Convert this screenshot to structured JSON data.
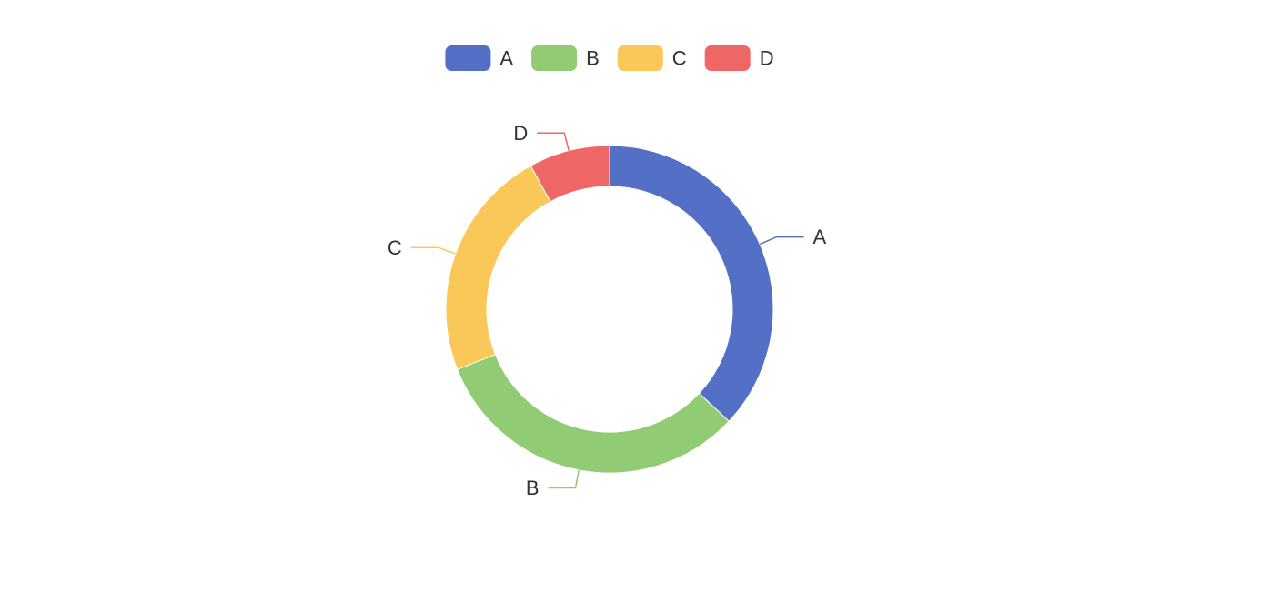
{
  "chart_data": {
    "type": "pie",
    "variant": "donut",
    "categories": [
      "A",
      "B",
      "C",
      "D"
    ],
    "values": [
      37,
      32,
      23,
      8
    ],
    "colors": [
      "#5470c6",
      "#91cc75",
      "#fac858",
      "#ee6666"
    ],
    "legend": {
      "position": "top-center",
      "entries": [
        "A",
        "B",
        "C",
        "D"
      ]
    },
    "start_angle_deg": 90,
    "direction": "clockwise",
    "label_color": "#333333"
  }
}
